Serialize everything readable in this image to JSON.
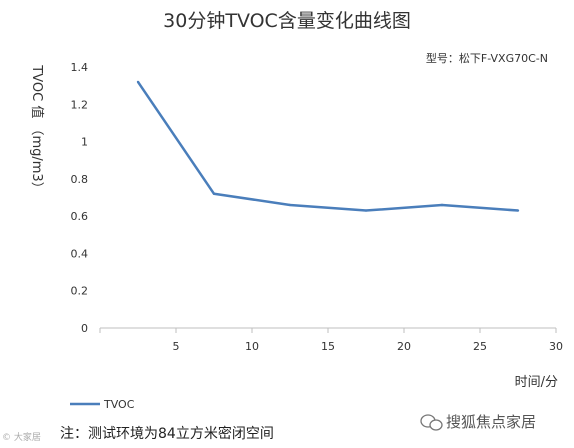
{
  "chart_data": {
    "type": "line",
    "title": "30分钟TVOC含量变化曲线图",
    "subtitle": "型号：松下F-VXG70C-N",
    "xlabel": "时间/分",
    "ylabel": "TVOC 值 （mg/m3）",
    "xlim": [
      0,
      30
    ],
    "ylim": [
      0,
      1.4
    ],
    "x_ticks": [
      5,
      10,
      15,
      20,
      25,
      30
    ],
    "y_ticks": [
      "0",
      "0.2",
      "0.4",
      "0.6",
      "0.8",
      "1",
      "1.2",
      "1.4"
    ],
    "grid": false,
    "legend": "bottom-left",
    "series": [
      {
        "name": "TVOC",
        "color": "#4a7ebb",
        "x": [
          2.5,
          7.5,
          12.5,
          17.5,
          22.5,
          27.5
        ],
        "y": [
          1.32,
          0.72,
          0.66,
          0.63,
          0.66,
          0.63
        ]
      }
    ]
  },
  "note": "注：测试环境为84立方米密闭空间",
  "watermark_left": "© 大家居",
  "watermark_right": "搜狐焦点家居",
  "watermark_icon": "wechat-icon"
}
